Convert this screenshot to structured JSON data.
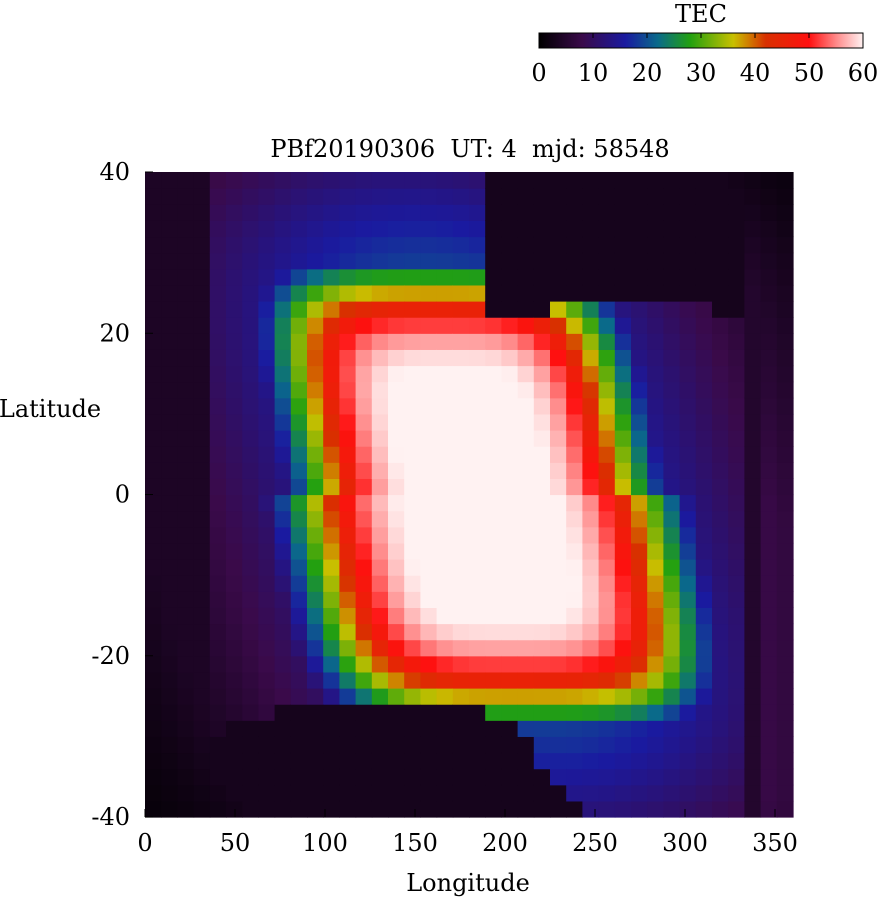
{
  "chart_data": {
    "type": "heatmap",
    "title": "PBf20190306  UT: 4  mjd: 58548",
    "xlabel": "Longitude",
    "ylabel": "Latitude",
    "xlim": [
      0,
      360
    ],
    "ylim": [
      -40,
      40
    ],
    "xticks": [
      0,
      50,
      100,
      150,
      200,
      250,
      300,
      350
    ],
    "yticks": [
      -40,
      -20,
      0,
      20,
      40
    ],
    "colorbar": {
      "label": "TEC",
      "range": [
        0,
        60
      ],
      "ticks": [
        0,
        10,
        20,
        30,
        40,
        50,
        60
      ],
      "position": "top-right",
      "stops": [
        {
          "v": 0,
          "color": "#000000"
        },
        {
          "v": 8,
          "color": "#3a0a4a"
        },
        {
          "v": 16,
          "color": "#1a1aa0"
        },
        {
          "v": 22,
          "color": "#0a6a8a"
        },
        {
          "v": 28,
          "color": "#22a010"
        },
        {
          "v": 36,
          "color": "#c8c000"
        },
        {
          "v": 42,
          "color": "#d83000"
        },
        {
          "v": 50,
          "color": "#ff1010"
        },
        {
          "v": 55,
          "color": "#ff8888"
        },
        {
          "v": 60,
          "color": "#fff2f2"
        }
      ]
    },
    "grid": {
      "dlon": 9,
      "dlat": 2
    },
    "features": {
      "peak": {
        "lon": 185,
        "lat": 2,
        "value": 60
      },
      "trough_north": {
        "lon": 265,
        "lat": 38
      },
      "trough_south": {
        "lon": 140,
        "lat": -38
      }
    }
  }
}
